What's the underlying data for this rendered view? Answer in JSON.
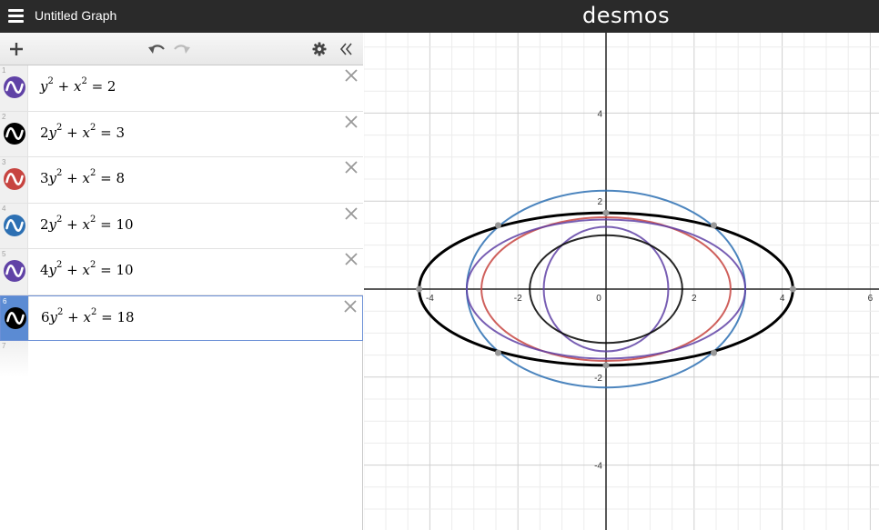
{
  "header": {
    "title": "Untitled Graph",
    "logo": "desmos",
    "menu_icon": "hamburger-menu-icon"
  },
  "toolbar": {
    "add_icon": "plus-icon",
    "undo_icon": "undo-icon",
    "redo_icon": "redo-icon",
    "settings_icon": "gear-icon",
    "collapse_icon": "double-chevron-left-icon"
  },
  "expressions": [
    {
      "index": "1",
      "color": "#6042a6",
      "a": "",
      "rhs": "2",
      "active": false
    },
    {
      "index": "2",
      "color": "#000000",
      "a": "2",
      "rhs": "3",
      "active": false
    },
    {
      "index": "3",
      "color": "#c74440",
      "a": "3",
      "rhs": "8",
      "active": false
    },
    {
      "index": "4",
      "color": "#2d70b3",
      "a": "2",
      "rhs": "10",
      "active": false
    },
    {
      "index": "5",
      "color": "#6042a6",
      "a": "4",
      "rhs": "10",
      "active": false
    },
    {
      "index": "6",
      "color": "#000000",
      "a": "6",
      "rhs": "18",
      "active": true
    }
  ],
  "empty_row_index": "7",
  "graph": {
    "x_range": [
      -5.5,
      6.2
    ],
    "y_range": [
      -5.5,
      5.8
    ],
    "x_tick_labels": [
      "-4",
      "-2",
      "0",
      "2",
      "4",
      "6"
    ],
    "y_tick_labels": [
      "4",
      "2",
      "-2",
      "-4"
    ],
    "curves": [
      {
        "a": 1,
        "rhs": 2,
        "color": "#6042a6"
      },
      {
        "a": 2,
        "rhs": 3,
        "color": "#000000"
      },
      {
        "a": 3,
        "rhs": 8,
        "color": "#c74440"
      },
      {
        "a": 2,
        "rhs": 10,
        "color": "#2d70b3"
      },
      {
        "a": 4,
        "rhs": 10,
        "color": "#6042a6"
      },
      {
        "a": 6,
        "rhs": 18,
        "color": "#000000",
        "bold": true
      }
    ],
    "points": [
      [
        -4.243,
        0
      ],
      [
        4.243,
        0
      ],
      [
        0,
        1.732
      ],
      [
        0,
        -1.732
      ],
      [
        -2.449,
        1.449
      ],
      [
        2.449,
        1.449
      ],
      [
        -2.449,
        -1.449
      ],
      [
        2.449,
        -1.449
      ]
    ]
  }
}
